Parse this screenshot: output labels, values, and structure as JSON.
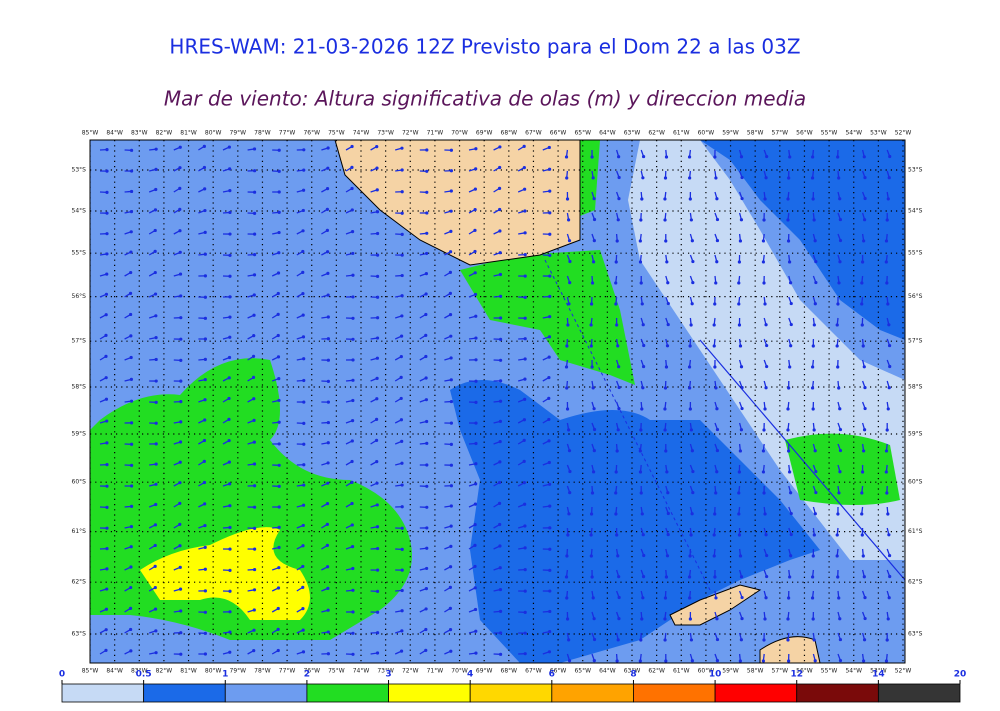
{
  "header": {
    "title": "HRES-WAM: 21-03-2026 12Z Previsto para el Dom 22 a las 03Z",
    "subtitle": "Mar de viento: Altura significativa de olas (m) y direccion media"
  },
  "map": {
    "lon_labels": [
      "85°W",
      "84°W",
      "83°W",
      "82°W",
      "81°W",
      "80°W",
      "79°W",
      "78°W",
      "77°W",
      "76°W",
      "75°W",
      "74°W",
      "73°W",
      "72°W",
      "71°W",
      "70°W",
      "69°W",
      "68°W",
      "67°W",
      "66°W",
      "65°W",
      "64°W",
      "63°W",
      "62°W",
      "61°W",
      "60°W",
      "59°W",
      "58°W",
      "57°W",
      "56°W",
      "55°W",
      "54°W",
      "53°W",
      "52°W"
    ],
    "lat_labels": [
      "53°S",
      "54°S",
      "55°S",
      "56°S",
      "57°S",
      "58°S",
      "59°S",
      "60°S",
      "61°S",
      "62°S",
      "63°S"
    ]
  },
  "legend": {
    "ticks": [
      0,
      0.5,
      1,
      2,
      3,
      4,
      6,
      8,
      10,
      12,
      14,
      20
    ],
    "colors": [
      "#c6daf5",
      "#1b6ae8",
      "#6d9cf0",
      "#22dd22",
      "#ffff00",
      "#ffd800",
      "#ffa300",
      "#ff7200",
      "#ff0000",
      "#7a0a0a",
      "#353535"
    ]
  }
}
